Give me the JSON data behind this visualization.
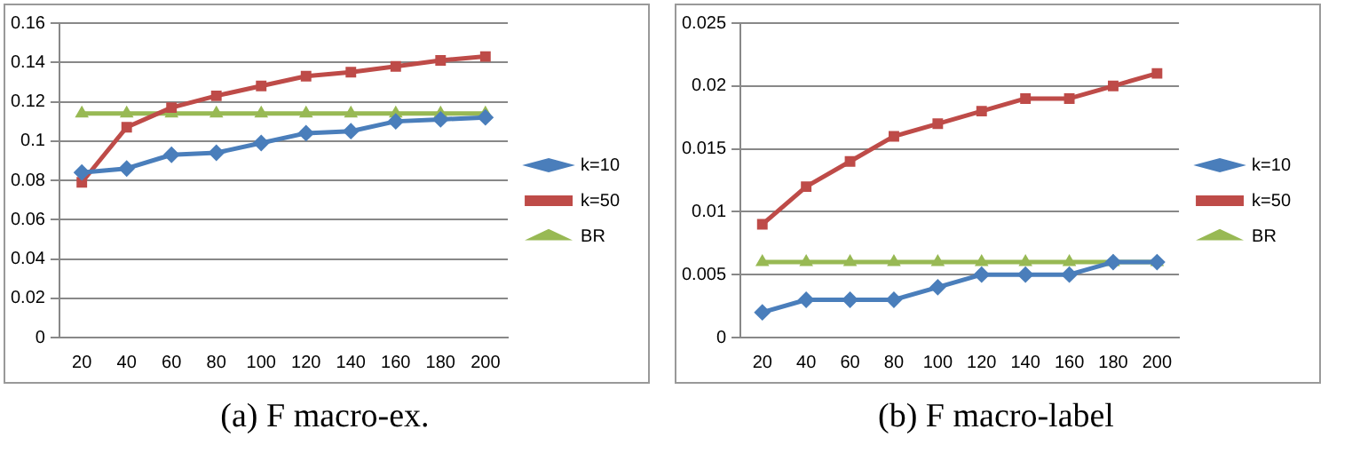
{
  "chart_data": [
    {
      "type": "line",
      "title": "(a) F macro-ex.",
      "categories": [
        "20",
        "40",
        "60",
        "80",
        "100",
        "120",
        "140",
        "160",
        "180",
        "200"
      ],
      "ylim": [
        0,
        0.16
      ],
      "yticks": [
        0,
        0.02,
        0.04,
        0.06,
        0.08,
        0.1,
        0.12,
        0.14,
        0.16
      ],
      "grid": "y",
      "legend": "right",
      "series": [
        {
          "name": "k=10",
          "color": "#4a7ebb",
          "marker": "diamond",
          "values": [
            0.084,
            0.086,
            0.093,
            0.094,
            0.099,
            0.104,
            0.105,
            0.11,
            0.111,
            0.112
          ]
        },
        {
          "name": "k=50",
          "color": "#be4b48",
          "marker": "square",
          "values": [
            0.079,
            0.107,
            0.117,
            0.123,
            0.128,
            0.133,
            0.135,
            0.138,
            0.141,
            0.143
          ]
        },
        {
          "name": "BR",
          "color": "#98b954",
          "marker": "triangle",
          "values": [
            0.114,
            0.114,
            0.114,
            0.114,
            0.114,
            0.114,
            0.114,
            0.114,
            0.114,
            0.114
          ]
        }
      ]
    },
    {
      "type": "line",
      "title": "(b) F macro-label",
      "categories": [
        "20",
        "40",
        "60",
        "80",
        "100",
        "120",
        "140",
        "160",
        "180",
        "200"
      ],
      "ylim": [
        0,
        0.025
      ],
      "yticks": [
        0,
        0.005,
        0.01,
        0.015,
        0.02,
        0.025
      ],
      "grid": "y",
      "legend": "right",
      "series": [
        {
          "name": "k=10",
          "color": "#4a7ebb",
          "marker": "diamond",
          "values": [
            0.002,
            0.003,
            0.003,
            0.003,
            0.004,
            0.005,
            0.005,
            0.005,
            0.006,
            0.006
          ]
        },
        {
          "name": "k=50",
          "color": "#be4b48",
          "marker": "square",
          "values": [
            0.009,
            0.012,
            0.014,
            0.016,
            0.017,
            0.018,
            0.019,
            0.019,
            0.02,
            0.021
          ]
        },
        {
          "name": "BR",
          "color": "#98b954",
          "marker": "triangle",
          "values": [
            0.006,
            0.006,
            0.006,
            0.006,
            0.006,
            0.006,
            0.006,
            0.006,
            0.006,
            0.006
          ]
        }
      ]
    }
  ]
}
